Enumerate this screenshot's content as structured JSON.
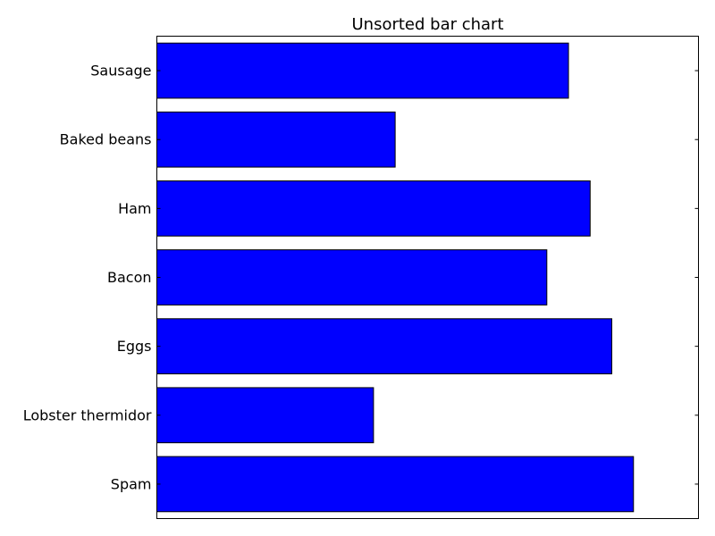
{
  "chart_data": {
    "type": "bar",
    "orientation": "horizontal",
    "title": "Unsorted bar chart",
    "xlabel": "",
    "ylabel": "",
    "categories": [
      "Spam",
      "Lobster thermidor",
      "Eggs",
      "Bacon",
      "Ham",
      "Baked beans",
      "Sausage"
    ],
    "values": [
      0.88,
      0.4,
      0.84,
      0.72,
      0.8,
      0.44,
      0.76
    ],
    "xlim": [
      0,
      1.0
    ],
    "x_ticks_visible": false,
    "grid": false,
    "legend": "none",
    "bar_color": "#0000ff",
    "edge_color": "#000000"
  }
}
